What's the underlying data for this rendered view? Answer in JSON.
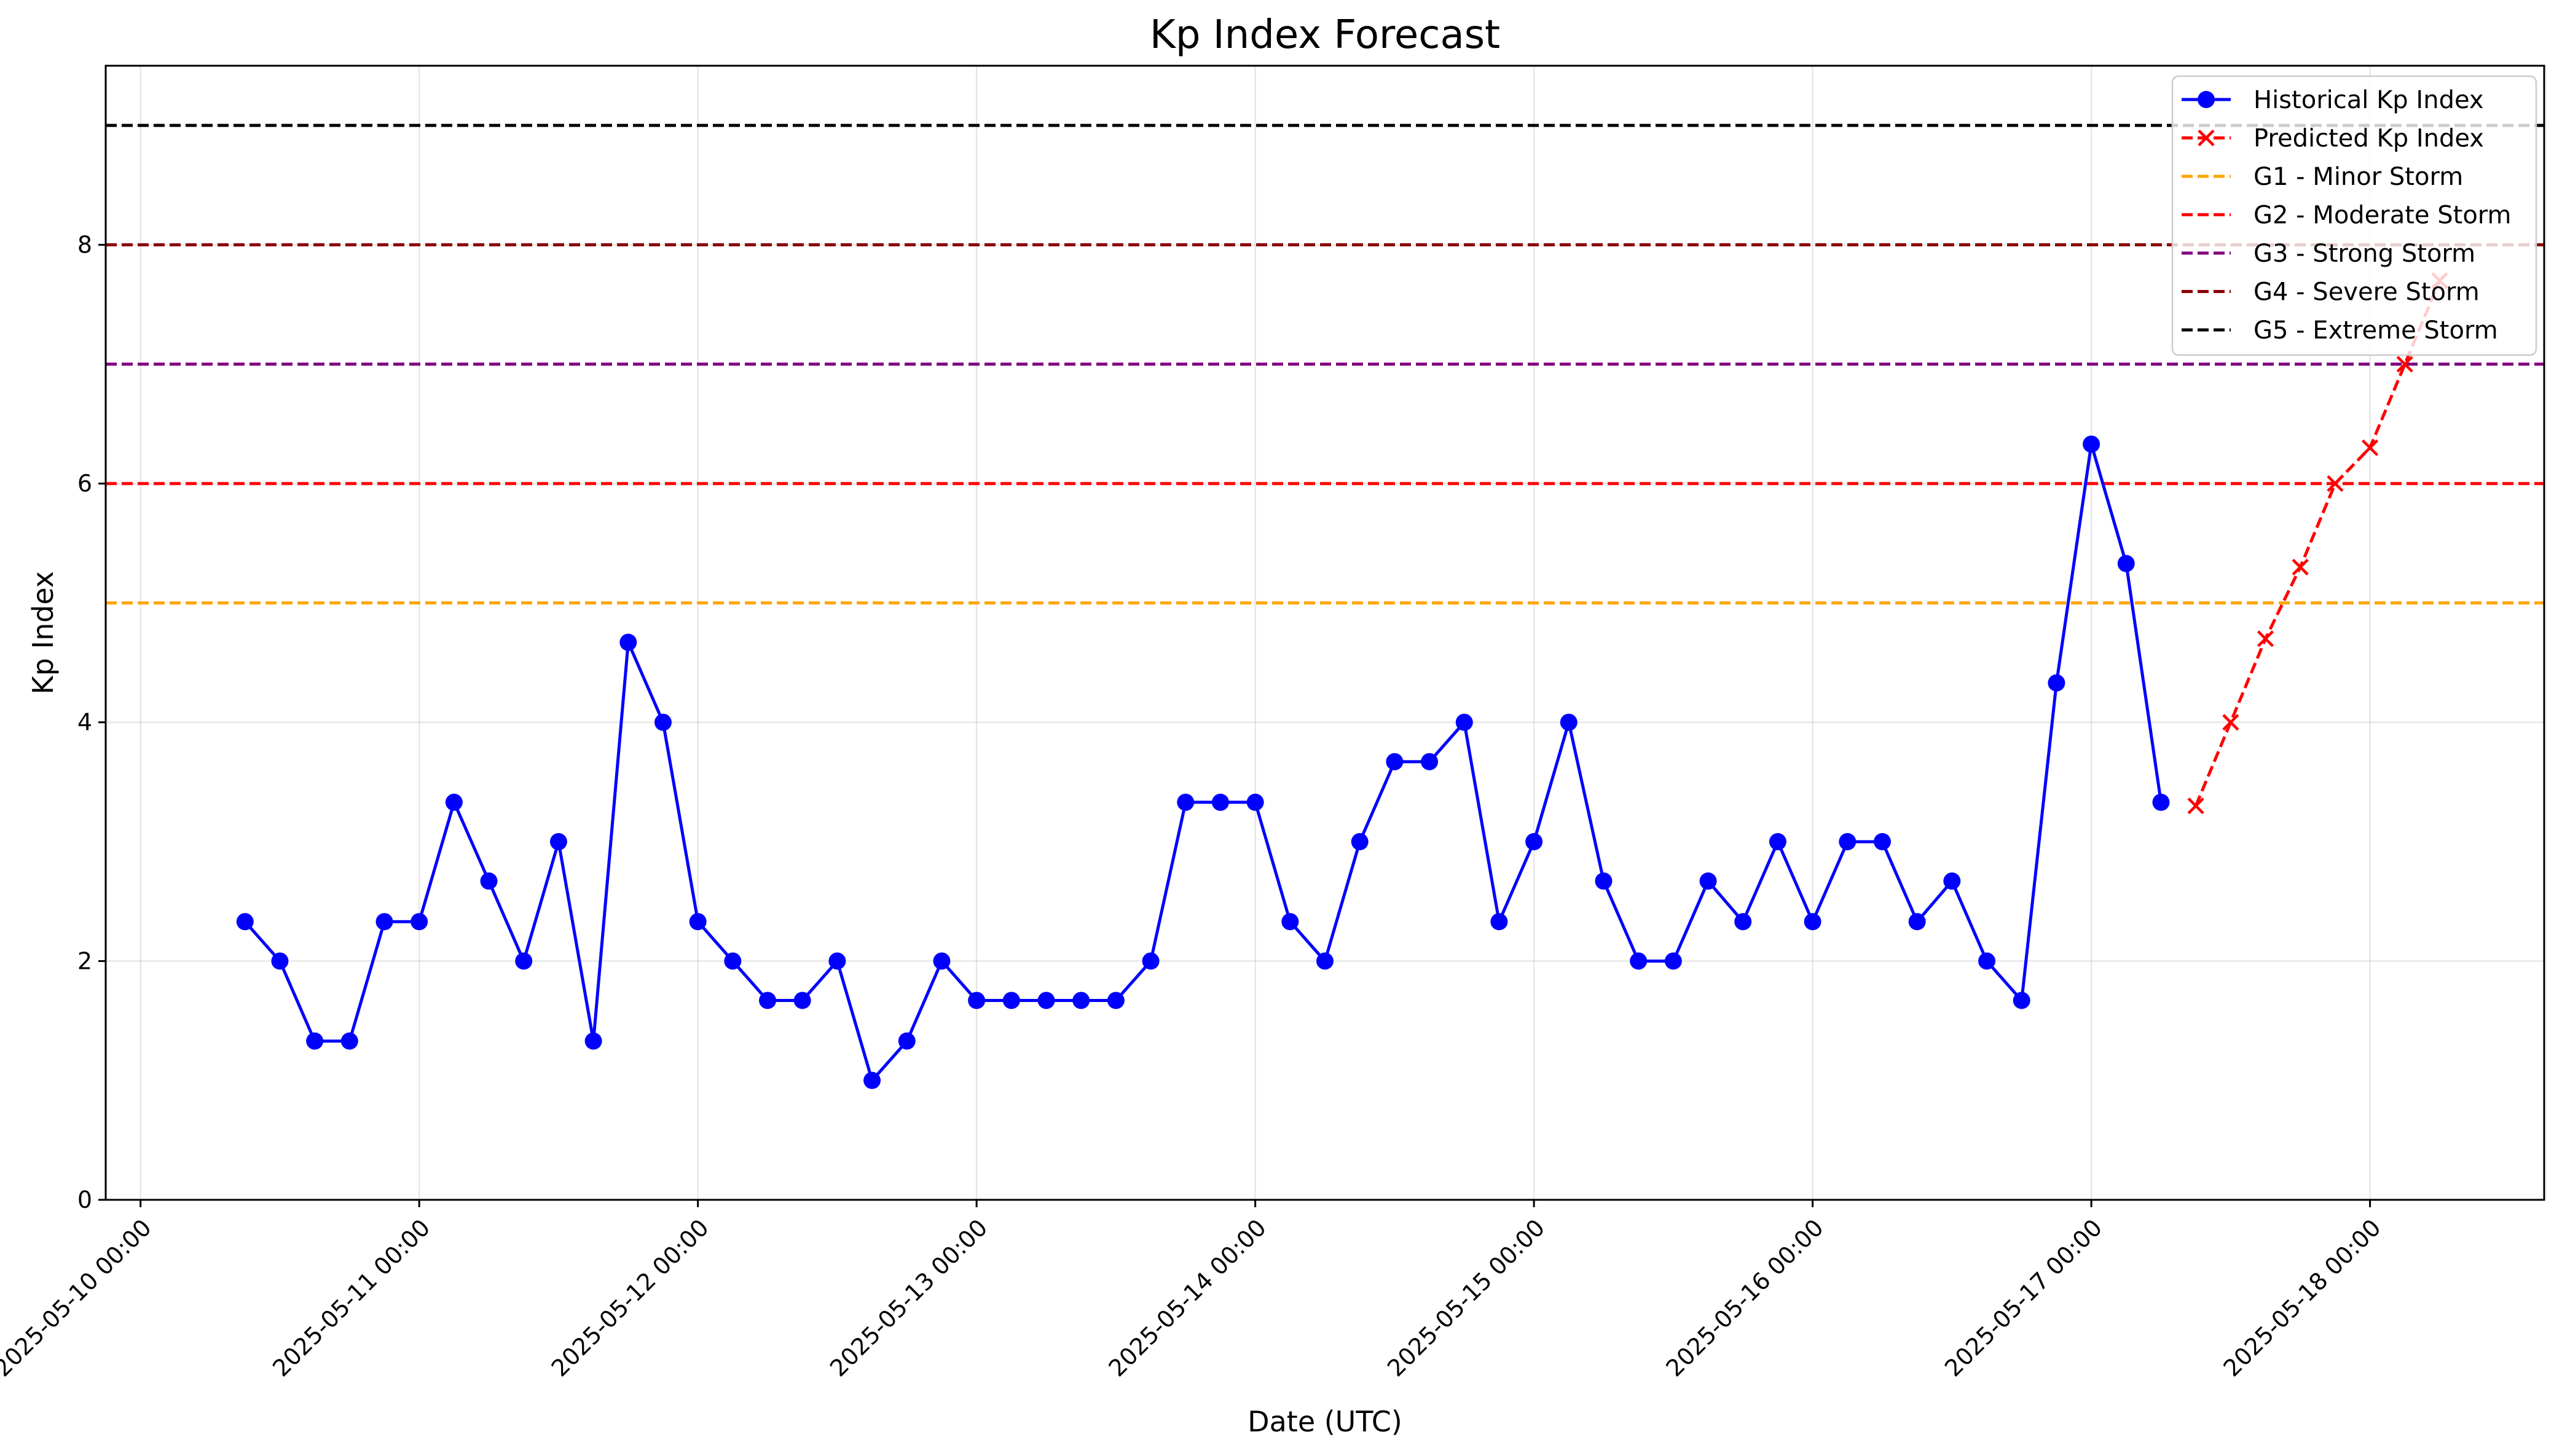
{
  "chart_data": {
    "type": "line",
    "title": "Kp Index Forecast",
    "xlabel": "Date (UTC)",
    "ylabel": "Kp Index",
    "x_range": [
      "2025-05-09 21:00",
      "2025-05-18 15:00"
    ],
    "ylim": [
      0,
      9.5
    ],
    "y_ticks": [
      0,
      2,
      4,
      6,
      8
    ],
    "x_ticks": [
      "2025-05-10 00:00",
      "2025-05-11 00:00",
      "2025-05-12 00:00",
      "2025-05-13 00:00",
      "2025-05-14 00:00",
      "2025-05-15 00:00",
      "2025-05-16 00:00",
      "2025-05-17 00:00",
      "2025-05-18 00:00"
    ],
    "grid": true,
    "legend_position": "top-right",
    "series": [
      {
        "name": "Historical Kp Index",
        "color": "#0000ff",
        "line_style": "solid",
        "marker": "circle",
        "x": [
          "2025-05-10 09:00",
          "2025-05-10 12:00",
          "2025-05-10 15:00",
          "2025-05-10 18:00",
          "2025-05-10 21:00",
          "2025-05-11 00:00",
          "2025-05-11 03:00",
          "2025-05-11 06:00",
          "2025-05-11 09:00",
          "2025-05-11 12:00",
          "2025-05-11 15:00",
          "2025-05-11 18:00",
          "2025-05-11 21:00",
          "2025-05-12 00:00",
          "2025-05-12 03:00",
          "2025-05-12 06:00",
          "2025-05-12 09:00",
          "2025-05-12 12:00",
          "2025-05-12 15:00",
          "2025-05-12 18:00",
          "2025-05-12 21:00",
          "2025-05-13 00:00",
          "2025-05-13 03:00",
          "2025-05-13 06:00",
          "2025-05-13 09:00",
          "2025-05-13 12:00",
          "2025-05-13 15:00",
          "2025-05-13 18:00",
          "2025-05-13 21:00",
          "2025-05-14 00:00",
          "2025-05-14 03:00",
          "2025-05-14 06:00",
          "2025-05-14 09:00",
          "2025-05-14 12:00",
          "2025-05-14 15:00",
          "2025-05-14 18:00",
          "2025-05-14 21:00",
          "2025-05-15 00:00",
          "2025-05-15 03:00",
          "2025-05-15 06:00",
          "2025-05-15 09:00",
          "2025-05-15 12:00",
          "2025-05-15 15:00",
          "2025-05-15 18:00",
          "2025-05-15 21:00",
          "2025-05-16 00:00",
          "2025-05-16 03:00",
          "2025-05-16 06:00",
          "2025-05-16 09:00",
          "2025-05-16 12:00",
          "2025-05-16 15:00",
          "2025-05-16 18:00",
          "2025-05-16 21:00",
          "2025-05-17 00:00",
          "2025-05-17 03:00",
          "2025-05-17 06:00"
        ],
        "y": [
          2.33,
          2.0,
          1.33,
          1.33,
          2.33,
          2.33,
          3.33,
          2.67,
          2.0,
          3.0,
          1.33,
          4.67,
          4.0,
          2.33,
          2.0,
          1.67,
          1.67,
          2.0,
          1.0,
          1.33,
          2.0,
          1.67,
          1.67,
          1.67,
          1.67,
          1.67,
          2.0,
          3.33,
          3.33,
          3.33,
          2.33,
          2.0,
          3.0,
          3.67,
          3.67,
          4.0,
          2.33,
          3.0,
          4.0,
          2.67,
          2.0,
          2.0,
          2.67,
          2.33,
          3.0,
          2.33,
          3.0,
          3.0,
          2.33,
          2.67,
          2.0,
          1.67,
          4.33,
          6.33,
          5.33,
          3.33
        ]
      },
      {
        "name": "Predicted Kp Index",
        "color": "#ff0000",
        "line_style": "dashed",
        "marker": "x",
        "x": [
          "2025-05-17 09:00",
          "2025-05-17 12:00",
          "2025-05-17 15:00",
          "2025-05-17 18:00",
          "2025-05-17 21:00",
          "2025-05-18 00:00",
          "2025-05-18 03:00",
          "2025-05-18 06:00"
        ],
        "y": [
          3.3,
          4.0,
          4.7,
          5.3,
          6.0,
          6.3,
          7.0,
          7.7
        ]
      }
    ],
    "thresholds": [
      {
        "name": "G1 - Minor Storm",
        "value": 5,
        "color": "#ffa500"
      },
      {
        "name": "G2 - Moderate Storm",
        "value": 6,
        "color": "#ff0000"
      },
      {
        "name": "G3 - Strong Storm",
        "value": 7,
        "color": "#800080"
      },
      {
        "name": "G4 - Severe Storm",
        "value": 8,
        "color": "#8b0000"
      },
      {
        "name": "G5 - Extreme Storm",
        "value": 9,
        "color": "#000000"
      }
    ]
  }
}
